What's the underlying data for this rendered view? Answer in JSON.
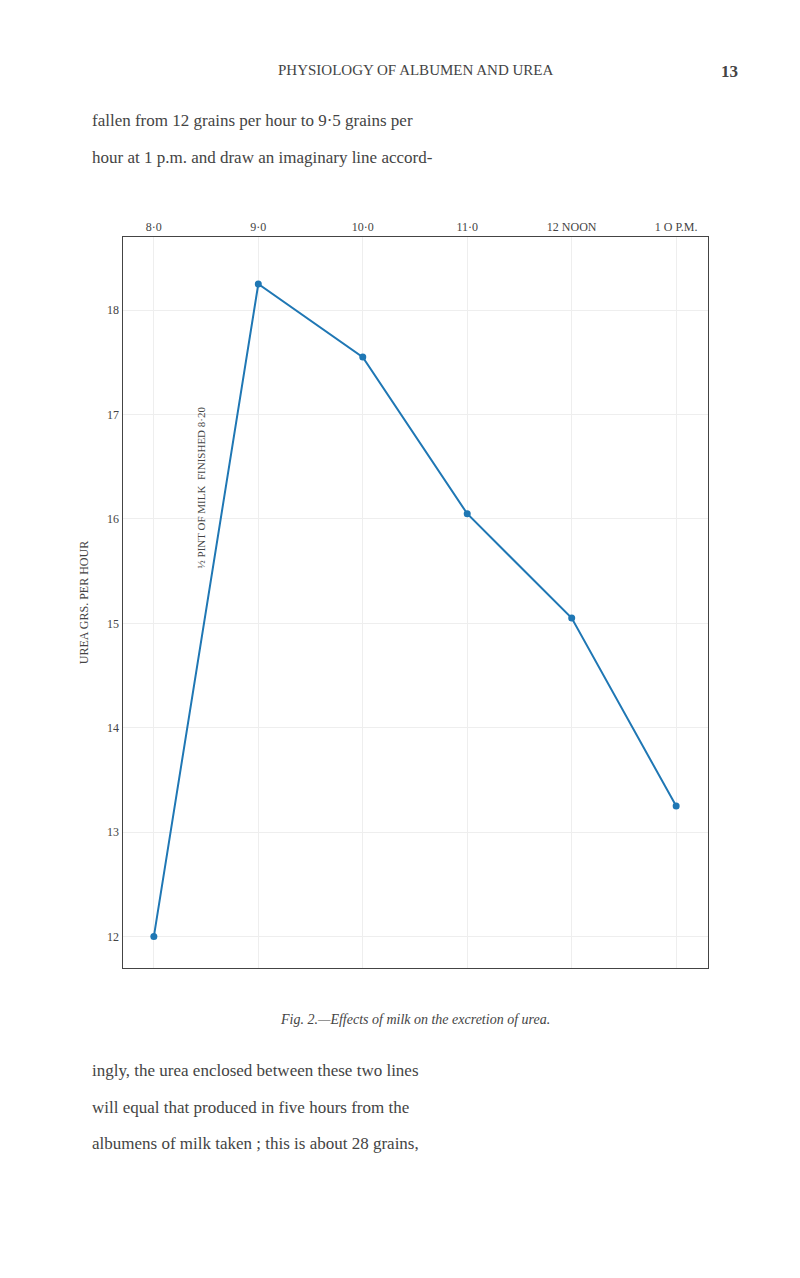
{
  "chart_data": {
    "type": "line",
    "title": "PHYSIOLOGY OF ALBUMEN AND UREA",
    "page_number": "13",
    "text_above": [
      "fallen from 12 grains per hour to 9·5 grains per",
      "hour at 1 p.m. and draw an imaginary line accord-"
    ],
    "caption": "Fig. 2.—Effects of milk on the excretion of urea.",
    "text_below": [
      "ingly, the urea enclosed between these two lines",
      "will equal that produced in five hours from the",
      "albumens of milk taken ; this is about 28 grains,"
    ],
    "ylabel": "UREA GRS. PER HOUR",
    "x": [
      8.0,
      9.0,
      10.0,
      11.0,
      12.0,
      13.0
    ],
    "values": [
      12.0,
      18.25,
      17.55,
      16.05,
      15.05,
      13.25
    ],
    "xlim": [
      7.7,
      13.3
    ],
    "xticks": [
      {
        "value": 8.0,
        "label": "8·0"
      },
      {
        "value": 9.0,
        "label": "9·0"
      },
      {
        "value": 10.0,
        "label": "10·0"
      },
      {
        "value": 11.0,
        "label": "11·0"
      },
      {
        "value": 12.0,
        "label": "12 NOON"
      },
      {
        "value": 13.0,
        "label": "1 O P.M."
      }
    ],
    "ylim": [
      11.7,
      18.7
    ],
    "yticks": [
      12,
      13,
      14,
      15,
      16,
      17,
      18
    ],
    "grid": true,
    "marker": "circle",
    "annotations": [
      {
        "text": "½ PINT OF MILK  FINISHED 8·20",
        "x": 8.45,
        "y": 16.3
      }
    ]
  }
}
